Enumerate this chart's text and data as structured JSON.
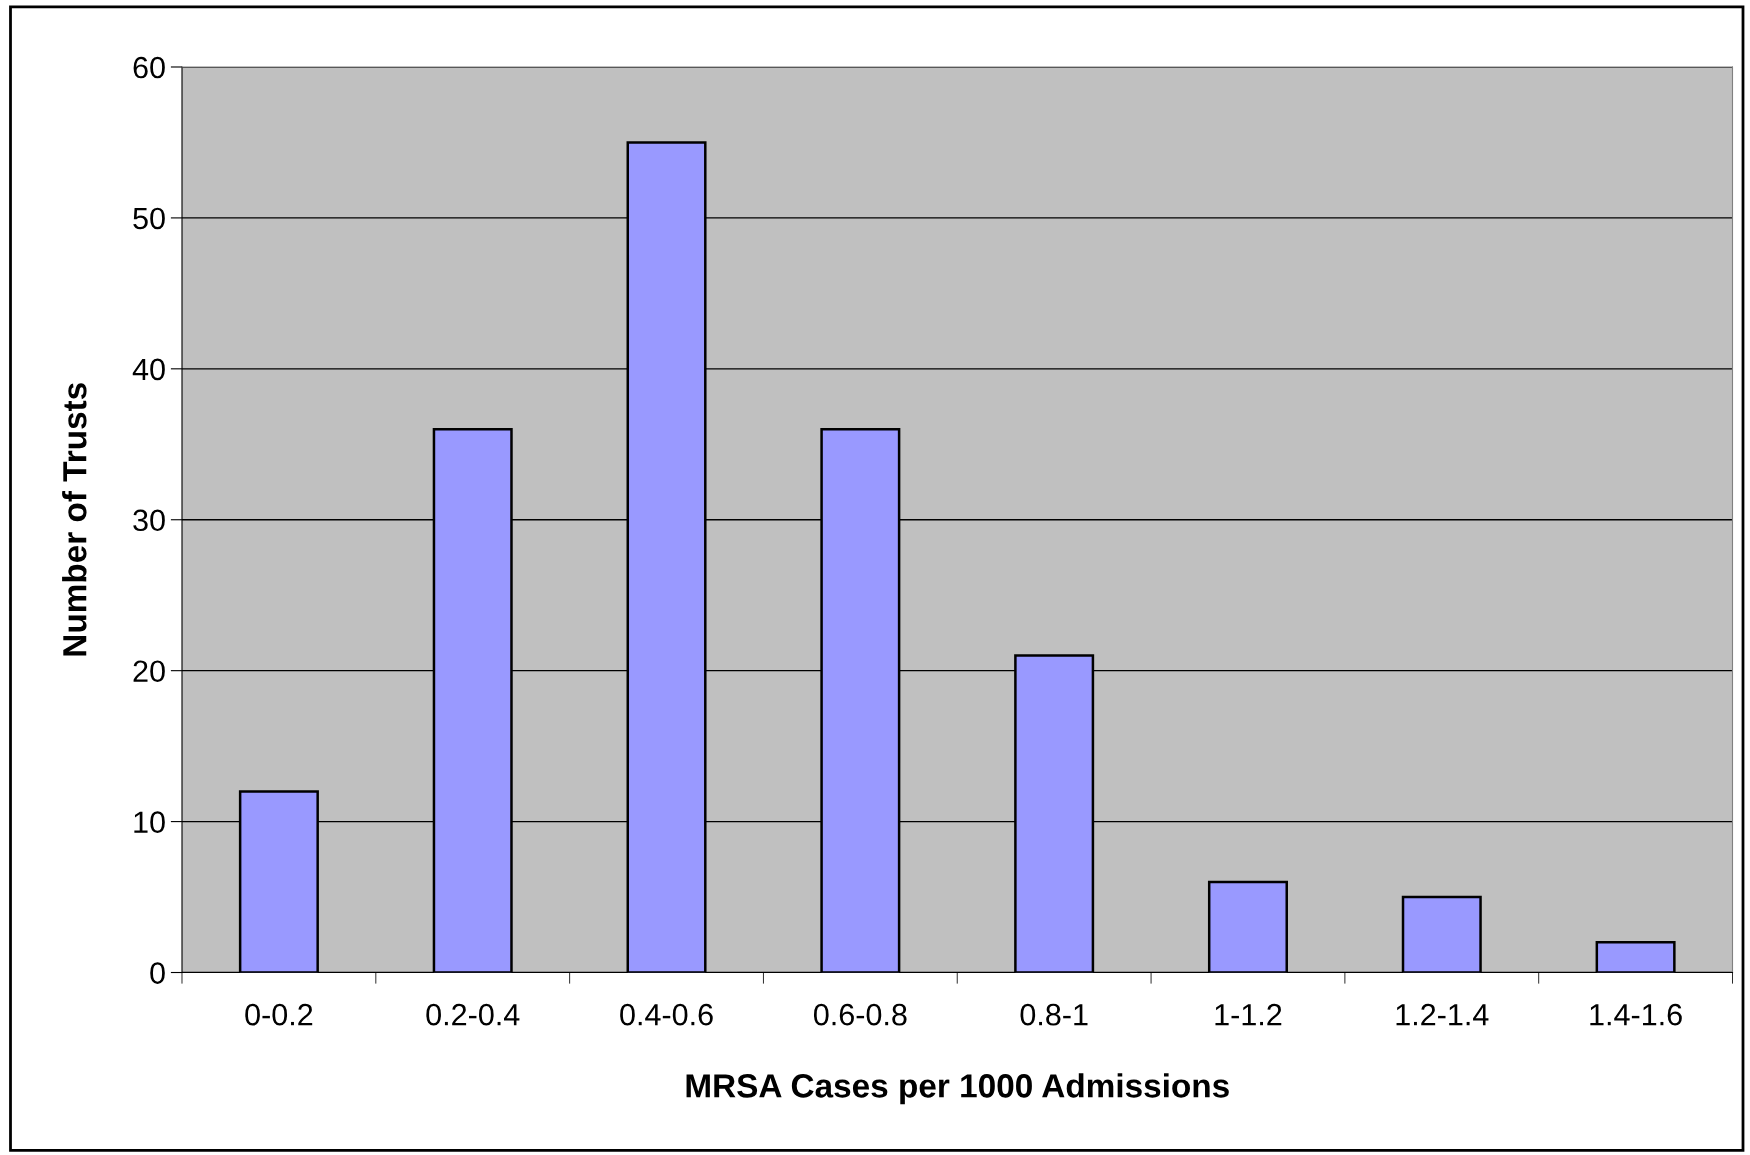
{
  "chart_data": {
    "type": "bar",
    "xlabel": "MRSA Cases per 1000 Admissions",
    "ylabel": "Number of Trusts",
    "categories": [
      "0-0.2",
      "0.2-0.4",
      "0.4-0.6",
      "0.6-0.8",
      "0.8-1",
      "1-1.2",
      "1.2-1.4",
      "1.4-1.6"
    ],
    "values": [
      12,
      36,
      55,
      36,
      21,
      6,
      5,
      2
    ],
    "color": "#9999ff",
    "ylim": [
      0,
      60
    ],
    "yticks": [
      0,
      10,
      20,
      30,
      40,
      50,
      60
    ],
    "grid": "y"
  }
}
